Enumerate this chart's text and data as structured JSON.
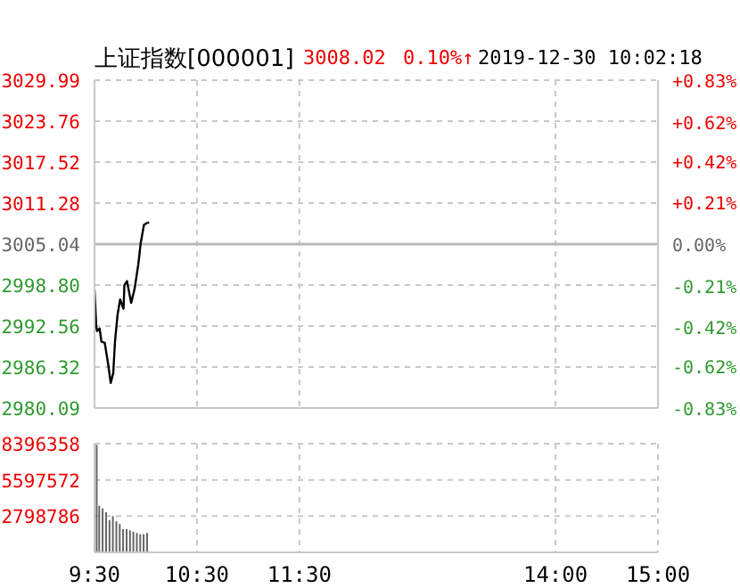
{
  "chart_data": [
    {
      "type": "line",
      "title": "上证指数[000001]",
      "annotations": [
        "3008.02",
        "0.10%↑",
        "2019-12-30 10:02:18"
      ],
      "tick_labels": "y",
      "grid": true,
      "marker": "none",
      "line_style": "solid",
      "x": [
        9.5,
        9.517,
        9.525,
        9.55,
        9.567,
        9.6,
        9.633,
        9.658,
        9.683,
        9.7,
        9.725,
        9.75,
        9.783,
        9.792,
        9.817,
        9.858,
        9.892,
        9.928,
        9.95,
        9.983,
        10.017,
        10.033
      ],
      "series": [
        {
          "color": "#000000",
          "values": [
            2998.1,
            2992.5,
            2991.8,
            2992.2,
            2990.2,
            2990.0,
            2986.8,
            2983.9,
            2985.4,
            2990.2,
            2994.3,
            2996.6,
            2995.2,
            2998.8,
            2999.4,
            2996.1,
            2998.3,
            3002.0,
            3005.1,
            3008.0,
            3008.3,
            3008.3
          ]
        }
      ],
      "xlim": [
        9.5,
        15
      ],
      "xticks": [
        {
          "value": 9.5,
          "label": null
        },
        {
          "value": 10.5,
          "label": null
        },
        {
          "value": 11.5,
          "label": null
        },
        {
          "value": 14,
          "label": null
        },
        {
          "value": 15,
          "label": null
        }
      ],
      "ylim": [
        2980.09,
        3029.99
      ],
      "yticks": [
        2980.09,
        2986.32,
        2992.56,
        {
          "value": 2998.8,
          "label": "2998.80"
        },
        3005.04,
        3011.28,
        3017.52,
        3023.76,
        3029.99
      ],
      "y2lim": [
        -0.83,
        0.83
      ],
      "y2ticks": [
        {
          "value": -0.83,
          "label": "-0.83%"
        },
        {
          "value": -0.62,
          "label": "-0.62%"
        },
        {
          "value": -0.42,
          "label": "-0.42%"
        },
        {
          "value": -0.21,
          "label": "-0.21%"
        },
        {
          "value": 0,
          "label": "0.00%"
        },
        {
          "value": 0.21,
          "label": "+0.21%"
        },
        {
          "value": 0.42,
          "label": "+0.42%"
        },
        {
          "value": 0.62,
          "label": "+0.62%"
        },
        {
          "value": 0.83,
          "label": "+0.83%"
        }
      ],
      "ref_lines": [
        {
          "axis": "y",
          "value": 3005.04,
          "color": "#bbbbbb",
          "line_style": "solid"
        }
      ]
    },
    {
      "type": "bar",
      "grid": true,
      "x": [
        9.525,
        9.55,
        9.583,
        9.617,
        9.65,
        9.683,
        9.717,
        9.75,
        9.783,
        9.817,
        9.85,
        9.883,
        9.917,
        9.95,
        9.983,
        10.017
      ],
      "series": [
        {
          "color": "#666666",
          "values": [
            8300000,
            3600000,
            3400000,
            3100000,
            2500000,
            2800000,
            2400000,
            2200000,
            1800000,
            1800000,
            1700000,
            1600000,
            1500000,
            1400000,
            1400000,
            1500000
          ]
        }
      ],
      "xlim": [
        9.5,
        15
      ],
      "xticks": [
        {
          "value": 9.5,
          "label": "9:30"
        },
        {
          "value": 10.5,
          "label": "10:30"
        },
        {
          "value": 11.5,
          "label": "11:30"
        },
        {
          "value": 14,
          "label": "14:00"
        },
        {
          "value": 15,
          "label": "15:00"
        }
      ],
      "ylim": [
        0,
        8396358
      ],
      "yticks": [
        2798786,
        5597572,
        8396358
      ]
    }
  ]
}
